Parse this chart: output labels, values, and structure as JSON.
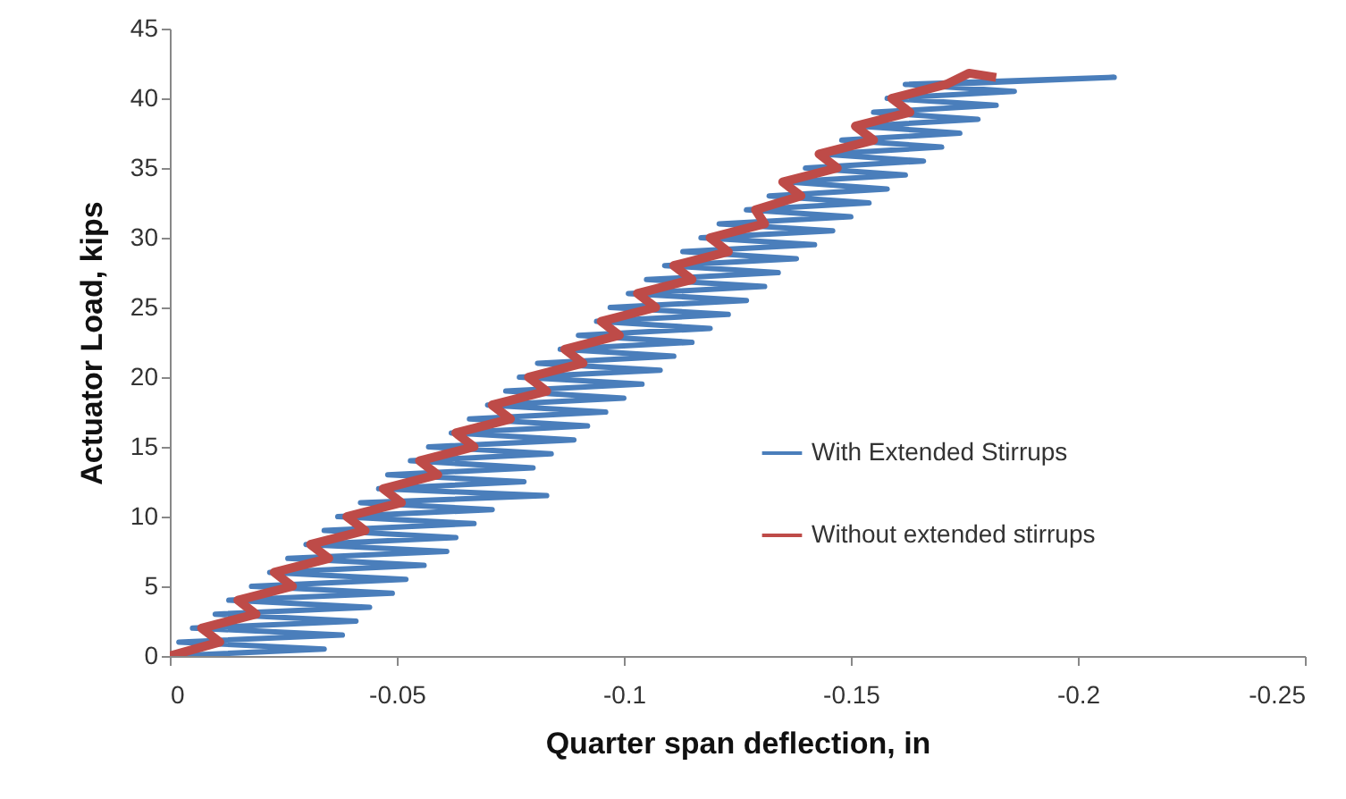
{
  "chart_data": {
    "type": "line",
    "xlabel": "Quarter span deflection, in",
    "ylabel": "Actuator Load, kips",
    "xlim": [
      0,
      -0.25
    ],
    "xticks": [
      0,
      -0.05,
      -0.1,
      -0.15,
      -0.2,
      -0.25
    ],
    "ylim": [
      0,
      45
    ],
    "yticks": [
      0,
      5,
      10,
      15,
      20,
      25,
      30,
      35,
      40,
      45
    ],
    "grid": false,
    "legend": "right",
    "marker": "none",
    "line_style": "solid",
    "series": [
      {
        "name": "With Extended Stirrups",
        "color": "#4a7ebb",
        "x": [
          0,
          -0.034,
          -0.002,
          -0.038,
          -0.005,
          -0.041,
          -0.01,
          -0.044,
          -0.013,
          -0.049,
          -0.018,
          -0.052,
          -0.022,
          -0.056,
          -0.026,
          -0.061,
          -0.03,
          -0.063,
          -0.034,
          -0.067,
          -0.037,
          -0.071,
          -0.042,
          -0.083,
          -0.046,
          -0.078,
          -0.048,
          -0.08,
          -0.053,
          -0.084,
          -0.057,
          -0.089,
          -0.062,
          -0.092,
          -0.066,
          -0.096,
          -0.07,
          -0.1,
          -0.074,
          -0.104,
          -0.077,
          -0.108,
          -0.081,
          -0.111,
          -0.086,
          -0.115,
          -0.09,
          -0.119,
          -0.094,
          -0.123,
          -0.097,
          -0.127,
          -0.101,
          -0.131,
          -0.105,
          -0.134,
          -0.109,
          -0.138,
          -0.113,
          -0.142,
          -0.117,
          -0.146,
          -0.121,
          -0.15,
          -0.127,
          -0.154,
          -0.132,
          -0.158,
          -0.136,
          -0.162,
          -0.14,
          -0.166,
          -0.144,
          -0.17,
          -0.148,
          -0.174,
          -0.152,
          -0.178,
          -0.155,
          -0.182,
          -0.158,
          -0.186,
          -0.162,
          -0.208,
          -0.17
        ],
        "values": [
          0,
          0.5,
          1,
          1.5,
          2,
          2.5,
          3,
          3.5,
          4,
          4.5,
          5,
          5.5,
          6,
          6.5,
          7,
          7.5,
          8,
          8.5,
          9,
          9.5,
          10,
          10.5,
          11,
          11.5,
          12,
          12.5,
          13,
          13.5,
          14,
          14.5,
          15,
          15.5,
          16,
          16.5,
          17,
          17.5,
          18,
          18.5,
          19,
          19.5,
          20,
          20.5,
          21,
          21.5,
          22,
          22.5,
          23,
          23.5,
          24,
          24.5,
          25,
          25.5,
          26,
          26.5,
          27,
          27.5,
          28,
          28.5,
          29,
          29.5,
          30,
          30.5,
          31,
          31.5,
          32,
          32.5,
          33,
          33.5,
          34,
          34.5,
          35,
          35.5,
          36,
          36.5,
          37,
          37.5,
          38,
          38.5,
          39,
          39.5,
          40,
          40.5,
          41,
          41.5,
          41
        ]
      },
      {
        "name": "Without extended stirrups",
        "color": "#be4b48",
        "x": [
          0,
          -0.011,
          -0.007,
          -0.019,
          -0.015,
          -0.027,
          -0.023,
          -0.035,
          -0.031,
          -0.043,
          -0.039,
          -0.051,
          -0.047,
          -0.059,
          -0.055,
          -0.067,
          -0.063,
          -0.075,
          -0.071,
          -0.083,
          -0.079,
          -0.091,
          -0.087,
          -0.099,
          -0.095,
          -0.107,
          -0.103,
          -0.115,
          -0.111,
          -0.123,
          -0.119,
          -0.131,
          -0.129,
          -0.139,
          -0.135,
          -0.147,
          -0.143,
          -0.155,
          -0.151,
          -0.163,
          -0.159,
          -0.171,
          -0.176,
          -0.182
        ],
        "values": [
          0,
          1,
          2,
          3,
          4,
          5,
          6,
          7,
          8,
          9,
          10,
          11,
          12,
          13,
          14,
          15,
          16,
          17,
          18,
          19,
          20,
          21,
          22,
          23,
          24,
          25,
          26,
          27,
          28,
          29,
          30,
          31,
          32,
          33,
          34,
          35,
          36,
          37,
          38,
          39,
          40,
          41,
          41.8,
          41.5
        ]
      }
    ]
  }
}
